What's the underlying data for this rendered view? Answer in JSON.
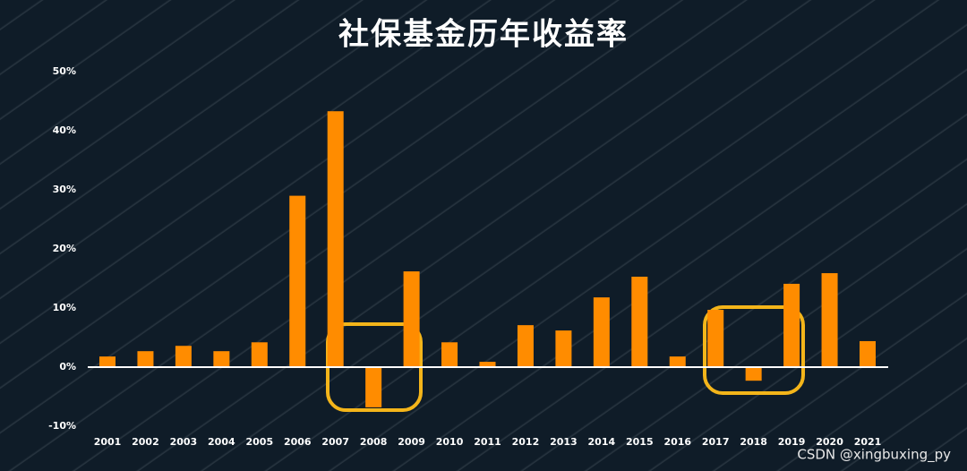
{
  "chart_data": {
    "type": "bar",
    "title": "社保基金历年收益率",
    "categories": [
      "2001",
      "2002",
      "2003",
      "2004",
      "2005",
      "2006",
      "2007",
      "2008",
      "2009",
      "2010",
      "2011",
      "2012",
      "2013",
      "2014",
      "2015",
      "2016",
      "2017",
      "2018",
      "2019",
      "2020",
      "2021"
    ],
    "values": [
      1.8,
      2.7,
      3.6,
      2.7,
      4.2,
      29.0,
      43.3,
      -6.8,
      16.2,
      4.2,
      0.9,
      7.1,
      6.2,
      11.8,
      15.3,
      1.8,
      9.7,
      -2.3,
      14.1,
      15.9,
      4.4
    ],
    "color": "#ff8c00",
    "ylim": [
      -10,
      50
    ],
    "yticks": [
      {
        "value": -10,
        "label": "-10%"
      },
      {
        "value": 0,
        "label": "0%"
      },
      {
        "value": 10,
        "label": "10%"
      },
      {
        "value": 20,
        "label": "20%"
      },
      {
        "value": 30,
        "label": "30%"
      },
      {
        "value": 40,
        "label": "40%"
      },
      {
        "value": 50,
        "label": "50%"
      }
    ],
    "grid": false
  },
  "watermark": "CSDN @xingbuxing_py"
}
